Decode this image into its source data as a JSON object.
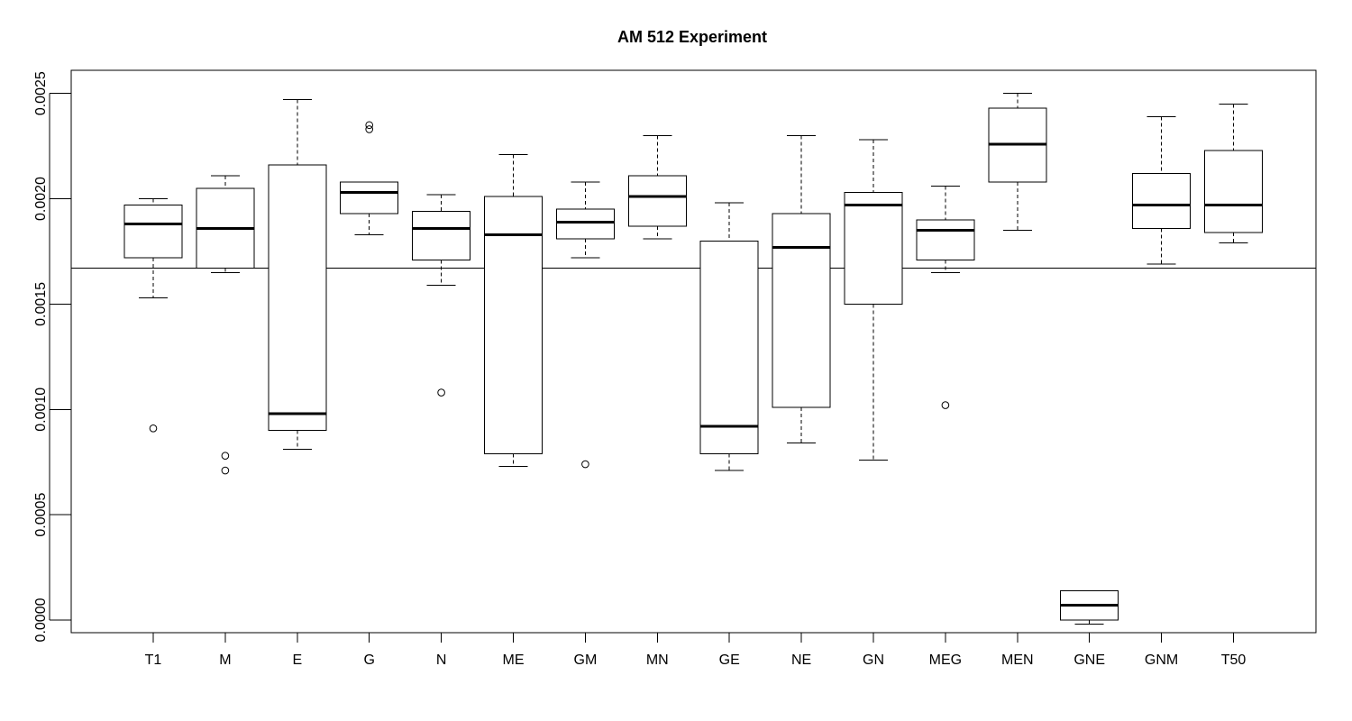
{
  "chart_data": {
    "type": "boxplot",
    "title": "AM 512 Experiment",
    "xlabel": "",
    "ylabel": "",
    "ylim": [
      -6e-05,
      0.00261
    ],
    "y_ticks": [
      0.0,
      0.0005,
      0.001,
      0.0015,
      0.002,
      0.0025
    ],
    "y_tick_labels": [
      "0.0000",
      "0.0005",
      "0.0010",
      "0.0015",
      "0.0020",
      "0.0025"
    ],
    "reference_line": 0.00167,
    "grid": false,
    "legend": "none",
    "categories": [
      "T1",
      "M",
      "E",
      "G",
      "N",
      "ME",
      "GM",
      "MN",
      "GE",
      "NE",
      "GN",
      "MEG",
      "MEN",
      "GNE",
      "GNM",
      "T50"
    ],
    "boxes": [
      {
        "label": "T1",
        "whisker_low": 0.00153,
        "q1": 0.00172,
        "median": 0.00188,
        "q3": 0.00197,
        "whisker_high": 0.002,
        "outliers": [
          0.00091
        ]
      },
      {
        "label": "M",
        "whisker_low": 0.00165,
        "q1": 0.00167,
        "median": 0.00186,
        "q3": 0.00205,
        "whisker_high": 0.00211,
        "outliers": [
          0.00078,
          0.00071
        ]
      },
      {
        "label": "E",
        "whisker_low": 0.00081,
        "q1": 0.0009,
        "median": 0.00098,
        "q3": 0.00216,
        "whisker_high": 0.00247,
        "outliers": []
      },
      {
        "label": "G",
        "whisker_low": 0.00183,
        "q1": 0.00193,
        "median": 0.00203,
        "q3": 0.00208,
        "whisker_high": 0.00208,
        "outliers": [
          0.00235,
          0.00233
        ]
      },
      {
        "label": "N",
        "whisker_low": 0.00159,
        "q1": 0.00171,
        "median": 0.00186,
        "q3": 0.00194,
        "whisker_high": 0.00202,
        "outliers": [
          0.00108
        ]
      },
      {
        "label": "ME",
        "whisker_low": 0.00073,
        "q1": 0.00079,
        "median": 0.00183,
        "q3": 0.00201,
        "whisker_high": 0.00221,
        "outliers": []
      },
      {
        "label": "GM",
        "whisker_low": 0.00172,
        "q1": 0.00181,
        "median": 0.00189,
        "q3": 0.00195,
        "whisker_high": 0.00208,
        "outliers": [
          0.00074
        ]
      },
      {
        "label": "MN",
        "whisker_low": 0.00181,
        "q1": 0.00187,
        "median": 0.00201,
        "q3": 0.00211,
        "whisker_high": 0.0023,
        "outliers": []
      },
      {
        "label": "GE",
        "whisker_low": 0.00071,
        "q1": 0.00079,
        "median": 0.00092,
        "q3": 0.0018,
        "whisker_high": 0.00198,
        "outliers": []
      },
      {
        "label": "NE",
        "whisker_low": 0.00084,
        "q1": 0.00101,
        "median": 0.00177,
        "q3": 0.00193,
        "whisker_high": 0.0023,
        "outliers": []
      },
      {
        "label": "GN",
        "whisker_low": 0.00076,
        "q1": 0.0015,
        "median": 0.00197,
        "q3": 0.00203,
        "whisker_high": 0.00228,
        "outliers": []
      },
      {
        "label": "MEG",
        "whisker_low": 0.00165,
        "q1": 0.00171,
        "median": 0.00185,
        "q3": 0.0019,
        "whisker_high": 0.00206,
        "outliers": [
          0.00102
        ]
      },
      {
        "label": "MEN",
        "whisker_low": 0.00185,
        "q1": 0.00208,
        "median": 0.00226,
        "q3": 0.00243,
        "whisker_high": 0.0025,
        "outliers": []
      },
      {
        "label": "GNE",
        "whisker_low": -2e-05,
        "q1": 0.0,
        "median": 7e-05,
        "q3": 0.00014,
        "whisker_high": 0.00014,
        "outliers": []
      },
      {
        "label": "GNM",
        "whisker_low": 0.00169,
        "q1": 0.00186,
        "median": 0.00197,
        "q3": 0.00212,
        "whisker_high": 0.00239,
        "outliers": []
      },
      {
        "label": "T50",
        "whisker_low": 0.00179,
        "q1": 0.00184,
        "median": 0.00197,
        "q3": 0.00223,
        "whisker_high": 0.00245,
        "outliers": []
      }
    ]
  }
}
